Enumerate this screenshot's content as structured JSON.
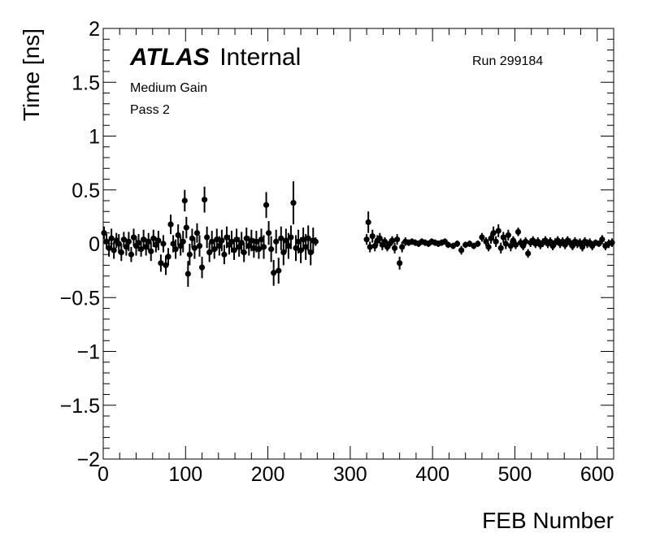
{
  "chart_data": {
    "type": "scatter",
    "title": "",
    "xlabel": "FEB Number",
    "ylabel": "Time [ns]",
    "xlim": [
      0,
      620
    ],
    "ylim": [
      -2,
      2
    ],
    "xticks": [
      0,
      100,
      200,
      300,
      400,
      500,
      600
    ],
    "xtick_labels": [
      "0",
      "100",
      "200",
      "300",
      "400",
      "500",
      "600"
    ],
    "yticks": [
      -2,
      -1.5,
      -1,
      -0.5,
      0,
      0.5,
      1,
      1.5,
      2
    ],
    "ytick_labels": [
      "−2",
      "−1.5",
      "−1",
      "−0.5",
      "0",
      "0.5",
      "1",
      "1.5",
      "2"
    ],
    "grid": false,
    "annotations": {
      "atlas": "ATLAS",
      "internal": "Internal",
      "run": "Run 299184",
      "gain": "Medium Gain",
      "pass": "Pass 2"
    },
    "series": [
      {
        "marker": "filled-circle",
        "color": "#000000",
        "points": [
          {
            "x": 1,
            "y": 0.1,
            "err": 0.06
          },
          {
            "x": 4,
            "y": 0.02,
            "err": 0.07
          },
          {
            "x": 7,
            "y": -0.04,
            "err": 0.08
          },
          {
            "x": 10,
            "y": 0.05,
            "err": 0.09
          },
          {
            "x": 13,
            "y": -0.06,
            "err": 0.08
          },
          {
            "x": 16,
            "y": 0.03,
            "err": 0.07
          },
          {
            "x": 19,
            "y": 0.0,
            "err": 0.09
          },
          {
            "x": 22,
            "y": -0.08,
            "err": 0.08
          },
          {
            "x": 25,
            "y": 0.04,
            "err": 0.07
          },
          {
            "x": 28,
            "y": -0.03,
            "err": 0.08
          },
          {
            "x": 31,
            "y": 0.02,
            "err": 0.09
          },
          {
            "x": 34,
            "y": -0.1,
            "err": 0.07
          },
          {
            "x": 37,
            "y": 0.06,
            "err": 0.08
          },
          {
            "x": 40,
            "y": -0.02,
            "err": 0.09
          },
          {
            "x": 43,
            "y": 0.01,
            "err": 0.08
          },
          {
            "x": 46,
            "y": -0.05,
            "err": 0.07
          },
          {
            "x": 49,
            "y": 0.04,
            "err": 0.09
          },
          {
            "x": 52,
            "y": -0.03,
            "err": 0.08
          },
          {
            "x": 55,
            "y": 0.02,
            "err": 0.08
          },
          {
            "x": 58,
            "y": -0.07,
            "err": 0.09
          },
          {
            "x": 61,
            "y": 0.05,
            "err": 0.08
          },
          {
            "x": 64,
            "y": -0.01,
            "err": 0.07
          },
          {
            "x": 67,
            "y": 0.03,
            "err": 0.09
          },
          {
            "x": 70,
            "y": -0.18,
            "err": 0.08
          },
          {
            "x": 73,
            "y": 0.0,
            "err": 0.08
          },
          {
            "x": 76,
            "y": -0.2,
            "err": 0.09
          },
          {
            "x": 79,
            "y": -0.12,
            "err": 0.08
          },
          {
            "x": 82,
            "y": 0.18,
            "err": 0.09
          },
          {
            "x": 85,
            "y": 0.0,
            "err": 0.08
          },
          {
            "x": 88,
            "y": -0.05,
            "err": 0.09
          },
          {
            "x": 91,
            "y": 0.08,
            "err": 0.1
          },
          {
            "x": 94,
            "y": -0.02,
            "err": 0.09
          },
          {
            "x": 97,
            "y": 0.02,
            "err": 0.1
          },
          {
            "x": 99,
            "y": 0.4,
            "err": 0.1
          },
          {
            "x": 101,
            "y": 0.15,
            "err": 0.1
          },
          {
            "x": 103,
            "y": -0.28,
            "err": 0.12
          },
          {
            "x": 105,
            "y": -0.1,
            "err": 0.1
          },
          {
            "x": 108,
            "y": 0.05,
            "err": 0.09
          },
          {
            "x": 111,
            "y": -0.04,
            "err": 0.1
          },
          {
            "x": 114,
            "y": 0.1,
            "err": 0.09
          },
          {
            "x": 117,
            "y": -0.02,
            "err": 0.1
          },
          {
            "x": 120,
            "y": -0.22,
            "err": 0.1
          },
          {
            "x": 123,
            "y": 0.41,
            "err": 0.12
          },
          {
            "x": 126,
            "y": 0.06,
            "err": 0.1
          },
          {
            "x": 129,
            "y": -0.08,
            "err": 0.09
          },
          {
            "x": 132,
            "y": 0.02,
            "err": 0.1
          },
          {
            "x": 135,
            "y": -0.05,
            "err": 0.09
          },
          {
            "x": 138,
            "y": 0.04,
            "err": 0.1
          },
          {
            "x": 141,
            "y": -0.02,
            "err": 0.09
          },
          {
            "x": 144,
            "y": 0.03,
            "err": 0.1
          },
          {
            "x": 147,
            "y": -0.1,
            "err": 0.09
          },
          {
            "x": 150,
            "y": 0.06,
            "err": 0.1
          },
          {
            "x": 153,
            "y": -0.01,
            "err": 0.09
          },
          {
            "x": 156,
            "y": 0.02,
            "err": 0.1
          },
          {
            "x": 159,
            "y": -0.06,
            "err": 0.09
          },
          {
            "x": 162,
            "y": 0.04,
            "err": 0.1
          },
          {
            "x": 165,
            "y": -0.03,
            "err": 0.09
          },
          {
            "x": 168,
            "y": 0.01,
            "err": 0.1
          },
          {
            "x": 171,
            "y": -0.08,
            "err": 0.09
          },
          {
            "x": 174,
            "y": 0.05,
            "err": 0.1
          },
          {
            "x": 177,
            "y": -0.02,
            "err": 0.09
          },
          {
            "x": 180,
            "y": 0.03,
            "err": 0.1
          },
          {
            "x": 183,
            "y": -0.04,
            "err": 0.09
          },
          {
            "x": 186,
            "y": 0.02,
            "err": 0.1
          },
          {
            "x": 189,
            "y": -0.05,
            "err": 0.09
          },
          {
            "x": 192,
            "y": 0.04,
            "err": 0.1
          },
          {
            "x": 195,
            "y": -0.03,
            "err": 0.11
          },
          {
            "x": 198,
            "y": 0.36,
            "err": 0.12
          },
          {
            "x": 201,
            "y": 0.1,
            "err": 0.11
          },
          {
            "x": 204,
            "y": -0.05,
            "err": 0.12
          },
          {
            "x": 207,
            "y": -0.27,
            "err": 0.12
          },
          {
            "x": 210,
            "y": 0.02,
            "err": 0.11
          },
          {
            "x": 213,
            "y": -0.25,
            "err": 0.12
          },
          {
            "x": 216,
            "y": 0.05,
            "err": 0.11
          },
          {
            "x": 219,
            "y": -0.08,
            "err": 0.12
          },
          {
            "x": 222,
            "y": 0.03,
            "err": 0.11
          },
          {
            "x": 225,
            "y": -0.02,
            "err": 0.12
          },
          {
            "x": 228,
            "y": 0.06,
            "err": 0.11
          },
          {
            "x": 231,
            "y": 0.38,
            "err": 0.2
          },
          {
            "x": 234,
            "y": -0.04,
            "err": 0.12
          },
          {
            "x": 237,
            "y": 0.02,
            "err": 0.11
          },
          {
            "x": 240,
            "y": -0.06,
            "err": 0.12
          },
          {
            "x": 243,
            "y": 0.04,
            "err": 0.11
          },
          {
            "x": 246,
            "y": -0.03,
            "err": 0.12
          },
          {
            "x": 249,
            "y": 0.05,
            "err": 0.12
          },
          {
            "x": 252,
            "y": -0.08,
            "err": 0.12
          },
          {
            "x": 255,
            "y": 0.03,
            "err": 0.12
          },
          {
            "x": 258,
            "y": 0.02,
            "err": 0.04
          },
          {
            "x": 320,
            "y": 0.04,
            "err": 0.05
          },
          {
            "x": 322,
            "y": 0.2,
            "err": 0.1
          },
          {
            "x": 324,
            "y": -0.03,
            "err": 0.05
          },
          {
            "x": 327,
            "y": 0.07,
            "err": 0.06
          },
          {
            "x": 330,
            "y": -0.02,
            "err": 0.05
          },
          {
            "x": 333,
            "y": 0.03,
            "err": 0.05
          },
          {
            "x": 336,
            "y": 0.05,
            "err": 0.05
          },
          {
            "x": 339,
            "y": -0.01,
            "err": 0.05
          },
          {
            "x": 342,
            "y": 0.02,
            "err": 0.04
          },
          {
            "x": 345,
            "y": -0.03,
            "err": 0.04
          },
          {
            "x": 348,
            "y": 0.0,
            "err": 0.04
          },
          {
            "x": 351,
            "y": 0.03,
            "err": 0.04
          },
          {
            "x": 354,
            "y": -0.04,
            "err": 0.05
          },
          {
            "x": 357,
            "y": 0.04,
            "err": 0.05
          },
          {
            "x": 360,
            "y": -0.18,
            "err": 0.06
          },
          {
            "x": 363,
            "y": -0.03,
            "err": 0.05
          },
          {
            "x": 367,
            "y": 0.02,
            "err": 0.04
          },
          {
            "x": 371,
            "y": 0.01,
            "err": 0.03
          },
          {
            "x": 375,
            "y": 0.02,
            "err": 0.03
          },
          {
            "x": 379,
            "y": 0.01,
            "err": 0.03
          },
          {
            "x": 383,
            "y": 0.0,
            "err": 0.03
          },
          {
            "x": 387,
            "y": 0.02,
            "err": 0.03
          },
          {
            "x": 391,
            "y": 0.01,
            "err": 0.03
          },
          {
            "x": 395,
            "y": 0.0,
            "err": 0.03
          },
          {
            "x": 399,
            "y": 0.02,
            "err": 0.03
          },
          {
            "x": 403,
            "y": 0.01,
            "err": 0.03
          },
          {
            "x": 407,
            "y": 0.0,
            "err": 0.03
          },
          {
            "x": 411,
            "y": 0.01,
            "err": 0.03
          },
          {
            "x": 415,
            "y": 0.02,
            "err": 0.03
          },
          {
            "x": 419,
            "y": -0.01,
            "err": 0.03
          },
          {
            "x": 425,
            "y": -0.02,
            "err": 0.03
          },
          {
            "x": 430,
            "y": 0.0,
            "err": 0.03
          },
          {
            "x": 435,
            "y": -0.06,
            "err": 0.04
          },
          {
            "x": 440,
            "y": -0.01,
            "err": 0.03
          },
          {
            "x": 445,
            "y": 0.0,
            "err": 0.03
          },
          {
            "x": 450,
            "y": -0.02,
            "err": 0.03
          },
          {
            "x": 455,
            "y": 0.0,
            "err": 0.03
          },
          {
            "x": 460,
            "y": 0.06,
            "err": 0.04
          },
          {
            "x": 465,
            "y": 0.02,
            "err": 0.04
          },
          {
            "x": 468,
            "y": -0.03,
            "err": 0.04
          },
          {
            "x": 471,
            "y": 0.05,
            "err": 0.05
          },
          {
            "x": 474,
            "y": 0.1,
            "err": 0.06
          },
          {
            "x": 477,
            "y": 0.02,
            "err": 0.05
          },
          {
            "x": 480,
            "y": 0.12,
            "err": 0.06
          },
          {
            "x": 483,
            "y": -0.04,
            "err": 0.05
          },
          {
            "x": 486,
            "y": 0.06,
            "err": 0.05
          },
          {
            "x": 489,
            "y": 0.0,
            "err": 0.05
          },
          {
            "x": 492,
            "y": 0.08,
            "err": 0.05
          },
          {
            "x": 495,
            "y": -0.02,
            "err": 0.05
          },
          {
            "x": 498,
            "y": 0.03,
            "err": 0.04
          },
          {
            "x": 501,
            "y": -0.01,
            "err": 0.04
          },
          {
            "x": 504,
            "y": 0.11,
            "err": 0.04
          },
          {
            "x": 507,
            "y": 0.01,
            "err": 0.04
          },
          {
            "x": 510,
            "y": -0.02,
            "err": 0.04
          },
          {
            "x": 513,
            "y": 0.02,
            "err": 0.04
          },
          {
            "x": 516,
            "y": -0.09,
            "err": 0.04
          },
          {
            "x": 519,
            "y": 0.01,
            "err": 0.04
          },
          {
            "x": 522,
            "y": 0.03,
            "err": 0.04
          },
          {
            "x": 525,
            "y": 0.0,
            "err": 0.04
          },
          {
            "x": 528,
            "y": 0.02,
            "err": 0.04
          },
          {
            "x": 531,
            "y": -0.01,
            "err": 0.04
          },
          {
            "x": 534,
            "y": 0.01,
            "err": 0.04
          },
          {
            "x": 537,
            "y": 0.03,
            "err": 0.04
          },
          {
            "x": 540,
            "y": 0.0,
            "err": 0.04
          },
          {
            "x": 543,
            "y": 0.02,
            "err": 0.04
          },
          {
            "x": 546,
            "y": -0.02,
            "err": 0.04
          },
          {
            "x": 549,
            "y": 0.01,
            "err": 0.04
          },
          {
            "x": 552,
            "y": 0.03,
            "err": 0.04
          },
          {
            "x": 555,
            "y": 0.0,
            "err": 0.04
          },
          {
            "x": 558,
            "y": 0.02,
            "err": 0.04
          },
          {
            "x": 561,
            "y": -0.01,
            "err": 0.04
          },
          {
            "x": 564,
            "y": 0.03,
            "err": 0.04
          },
          {
            "x": 567,
            "y": 0.01,
            "err": 0.04
          },
          {
            "x": 570,
            "y": -0.02,
            "err": 0.04
          },
          {
            "x": 573,
            "y": 0.02,
            "err": 0.04
          },
          {
            "x": 576,
            "y": 0.0,
            "err": 0.04
          },
          {
            "x": 579,
            "y": 0.01,
            "err": 0.04
          },
          {
            "x": 582,
            "y": -0.03,
            "err": 0.04
          },
          {
            "x": 585,
            "y": 0.02,
            "err": 0.04
          },
          {
            "x": 588,
            "y": 0.0,
            "err": 0.04
          },
          {
            "x": 591,
            "y": 0.01,
            "err": 0.04
          },
          {
            "x": 594,
            "y": -0.02,
            "err": 0.04
          },
          {
            "x": 598,
            "y": 0.01,
            "err": 0.03
          },
          {
            "x": 602,
            "y": 0.0,
            "err": 0.03
          },
          {
            "x": 606,
            "y": 0.04,
            "err": 0.04
          },
          {
            "x": 610,
            "y": -0.02,
            "err": 0.04
          },
          {
            "x": 614,
            "y": 0.0,
            "err": 0.04
          },
          {
            "x": 618,
            "y": 0.01,
            "err": 0.04
          }
        ]
      }
    ]
  }
}
